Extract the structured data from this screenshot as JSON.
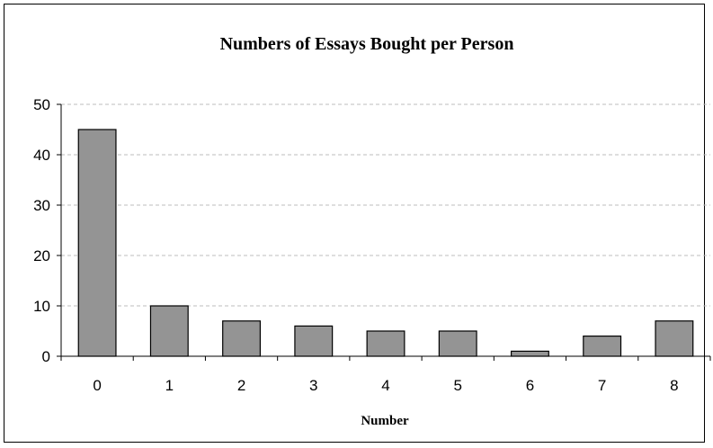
{
  "chart_data": {
    "type": "bar",
    "title": "Numbers of Essays Bought per Person",
    "xlabel": "Number",
    "ylabel": "",
    "categories": [
      "0",
      "1",
      "2",
      "3",
      "4",
      "5",
      "6",
      "7",
      "8"
    ],
    "values": [
      45,
      10,
      7,
      6,
      5,
      5,
      1,
      4,
      7
    ],
    "ylim": [
      0,
      50
    ],
    "yticks": [
      "0",
      "10",
      "20",
      "30",
      "40",
      "50"
    ],
    "grid": true,
    "legend": false,
    "colors": {
      "bar_fill": "#949494",
      "bar_stroke": "#000000",
      "grid": "#bdbdbd"
    }
  }
}
